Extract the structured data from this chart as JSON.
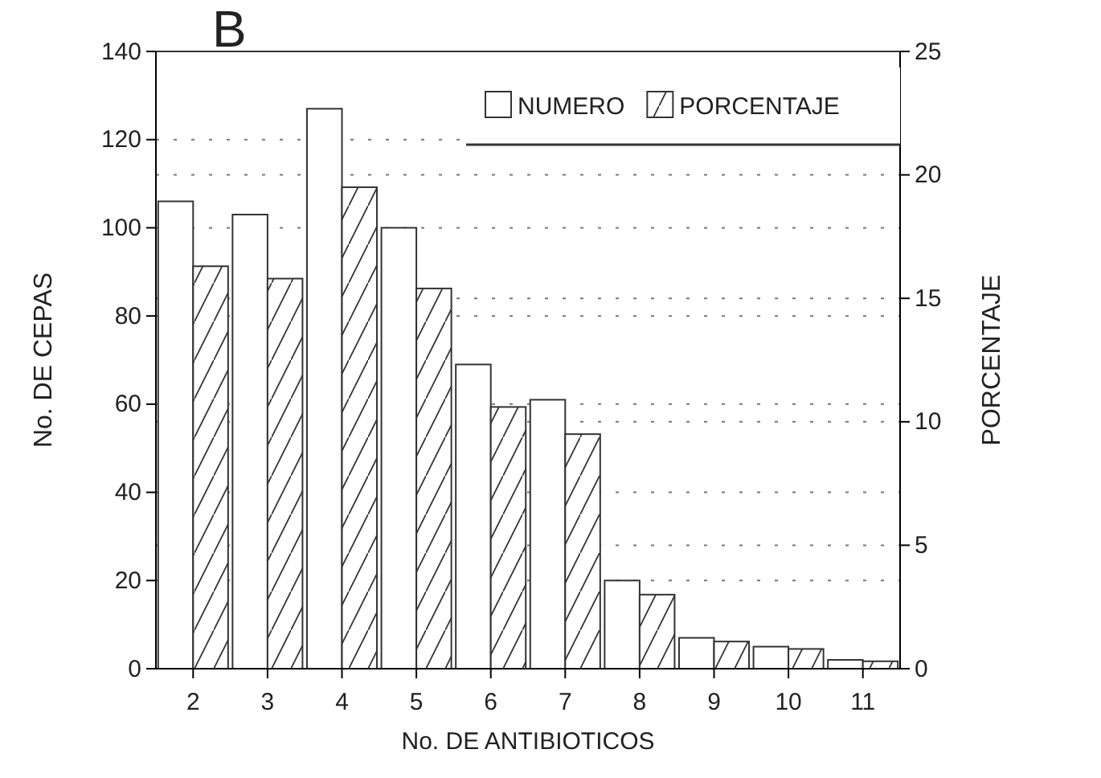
{
  "chart_data": {
    "type": "bar",
    "title": "B",
    "xlabel": "No. DE ANTIBIOTICOS",
    "ylabel": "No. DE CEPAS",
    "y2label": "PORCENTAJE",
    "categories": [
      "2",
      "3",
      "4",
      "5",
      "6",
      "7",
      "8",
      "9",
      "10",
      "11"
    ],
    "series": [
      {
        "name": "NUMERO",
        "color": "#ffffff",
        "values": [
          106,
          103,
          127,
          100,
          69,
          61,
          20,
          7,
          5,
          2
        ]
      },
      {
        "name": "PORCENTAJE",
        "color": "#333333",
        "axis": "y2",
        "values": [
          16.3,
          15.8,
          19.5,
          15.4,
          10.6,
          9.5,
          3.0,
          1.1,
          0.8,
          0.3
        ]
      }
    ],
    "ylim": [
      0,
      140
    ],
    "yticks": [
      0,
      20,
      40,
      60,
      80,
      100,
      120,
      140
    ],
    "y2lim": [
      0,
      25
    ],
    "y2ticks": [
      0,
      5,
      10,
      15,
      20,
      25
    ],
    "grid": true,
    "legend": "top right"
  }
}
